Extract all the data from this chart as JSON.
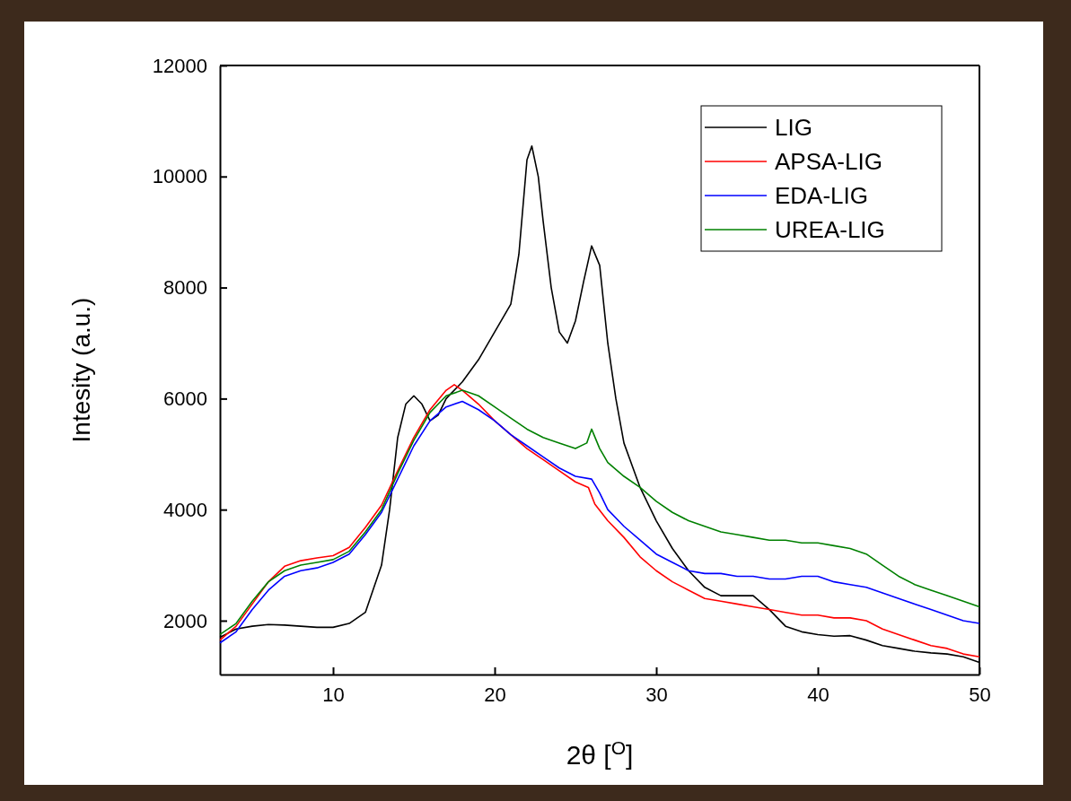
{
  "chart_data": {
    "type": "line",
    "xlabel": "2θ [$^{O}$]",
    "ylabel": "Intesity (a.u.)",
    "xlim": [
      3,
      50
    ],
    "ylim": [
      1030,
      12000
    ],
    "xticks": [
      10,
      20,
      30,
      40,
      50
    ],
    "yticks": [
      2000,
      4000,
      6000,
      8000,
      10000,
      12000
    ],
    "grid": false,
    "legend": "top right",
    "marker": "none",
    "line_style": "solid",
    "series": [
      {
        "name": "LIG",
        "color": "#000000",
        "x": [
          3,
          4,
          5,
          6,
          7,
          8,
          9,
          10,
          11,
          12,
          13,
          13.5,
          14,
          14.5,
          15,
          15.5,
          16,
          16.5,
          17,
          18,
          19,
          20,
          21,
          21.5,
          22,
          22.3,
          22.7,
          23,
          23.5,
          24,
          24.5,
          25,
          25.5,
          26,
          26.5,
          27,
          27.5,
          28,
          29,
          30,
          31,
          32,
          33,
          34,
          35,
          36,
          37,
          38,
          39,
          40,
          41,
          42,
          43,
          44,
          45,
          46,
          47,
          48,
          49,
          50
        ],
        "values": [
          1700,
          1850,
          1900,
          1930,
          1920,
          1900,
          1880,
          1880,
          1950,
          2150,
          3000,
          4000,
          5300,
          5900,
          6050,
          5900,
          5600,
          5700,
          6000,
          6300,
          6700,
          7200,
          7700,
          8600,
          10300,
          10550,
          10000,
          9200,
          8000,
          7200,
          7000,
          7400,
          8100,
          8750,
          8400,
          7000,
          6000,
          5200,
          4400,
          3800,
          3300,
          2900,
          2600,
          2450,
          2450,
          2450,
          2200,
          1900,
          1800,
          1750,
          1720,
          1730,
          1650,
          1550,
          1500,
          1450,
          1420,
          1400,
          1350,
          1250
        ]
      },
      {
        "name": "APSA-LIG",
        "color": "#ff0000",
        "x": [
          3,
          4,
          5,
          6,
          7,
          8,
          9,
          10,
          11,
          12,
          13,
          14,
          15,
          16,
          17,
          17.5,
          18,
          19,
          20,
          21,
          22,
          23,
          24,
          25,
          25.8,
          26.2,
          27,
          28,
          29,
          30,
          31,
          32,
          33,
          34,
          35,
          36,
          37,
          38,
          39,
          40,
          41,
          42,
          43,
          44,
          45,
          46,
          47,
          48,
          49,
          50
        ],
        "values": [
          1650,
          1900,
          2300,
          2700,
          2980,
          3080,
          3130,
          3170,
          3320,
          3680,
          4080,
          4700,
          5300,
          5800,
          6150,
          6250,
          6150,
          5900,
          5600,
          5350,
          5100,
          4900,
          4700,
          4500,
          4400,
          4100,
          3800,
          3500,
          3150,
          2900,
          2700,
          2550,
          2400,
          2350,
          2300,
          2250,
          2200,
          2150,
          2100,
          2100,
          2050,
          2050,
          2000,
          1850,
          1750,
          1650,
          1550,
          1500,
          1400,
          1350
        ]
      },
      {
        "name": "EDA-LIG",
        "color": "#0000ff",
        "x": [
          3,
          4,
          5,
          6,
          7,
          8,
          9,
          10,
          11,
          12,
          13,
          14,
          15,
          16,
          17,
          18,
          19,
          20,
          21,
          22,
          23,
          24,
          25,
          26,
          26.5,
          27,
          28,
          29,
          30,
          31,
          32,
          33,
          34,
          35,
          36,
          37,
          38,
          39,
          40,
          41,
          42,
          43,
          44,
          45,
          46,
          47,
          48,
          49,
          50
        ],
        "values": [
          1600,
          1800,
          2200,
          2550,
          2800,
          2900,
          2950,
          3050,
          3200,
          3550,
          3950,
          4550,
          5150,
          5600,
          5850,
          5950,
          5800,
          5600,
          5350,
          5150,
          4950,
          4750,
          4600,
          4550,
          4300,
          4000,
          3700,
          3450,
          3200,
          3050,
          2900,
          2850,
          2850,
          2800,
          2800,
          2750,
          2750,
          2800,
          2800,
          2700,
          2650,
          2600,
          2500,
          2400,
          2300,
          2200,
          2100,
          2000,
          1950
        ]
      },
      {
        "name": "UREA-LIG",
        "color": "#008000",
        "x": [
          3,
          4,
          5,
          6,
          7,
          8,
          9,
          10,
          11,
          12,
          13,
          14,
          15,
          16,
          17,
          18,
          19,
          20,
          21,
          22,
          23,
          24,
          25,
          25.7,
          26,
          26.5,
          27,
          28,
          29,
          30,
          31,
          32,
          33,
          34,
          35,
          36,
          37,
          38,
          39,
          40,
          41,
          42,
          43,
          44,
          45,
          46,
          47,
          48,
          49,
          50
        ],
        "values": [
          1750,
          1950,
          2350,
          2700,
          2900,
          3000,
          3050,
          3100,
          3250,
          3600,
          4000,
          4650,
          5250,
          5750,
          6050,
          6150,
          6050,
          5850,
          5650,
          5450,
          5300,
          5200,
          5100,
          5200,
          5450,
          5100,
          4850,
          4600,
          4400,
          4150,
          3950,
          3800,
          3700,
          3600,
          3550,
          3500,
          3450,
          3450,
          3400,
          3400,
          3350,
          3300,
          3200,
          3000,
          2800,
          2650,
          2550,
          2450,
          2350,
          2250
        ]
      }
    ]
  }
}
